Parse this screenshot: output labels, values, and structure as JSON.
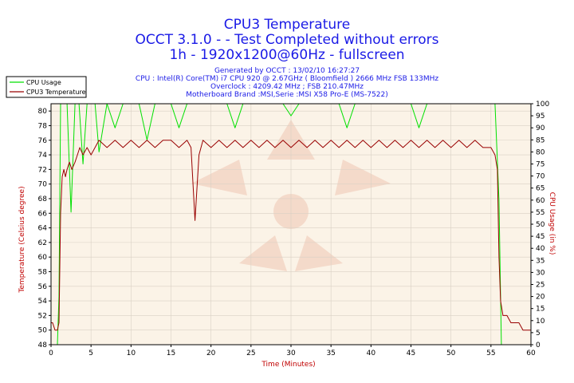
{
  "header": {
    "line1": "CPU3 Temperature",
    "line2": "OCCT 3.1.0 -  - Test Completed without errors",
    "line3": "1h - 1920x1200@60Hz - fullscreen"
  },
  "info": {
    "line1": "Generated by OCCT : 13/02/10 16:27:27",
    "line2": "CPU : Intel(R) Core(TM) i7 CPU 920 @ 2.67GHz ( Bloomfield ) 2666 MHz FSB 133MHz",
    "line3": "Overclock : 4209.42 MHz ; FSB 210.47MHz",
    "line4": "Motherboard Brand :MSI,Serie :MSI X58 Pro-E (MS-7522)"
  },
  "colors": {
    "title": "#1a1ae6",
    "cpu_usage": "#00e000",
    "temperature": "#990000",
    "plot_bg": "#fbf3e7",
    "watermark": "#f0c6b4",
    "grid": "#d9d0c4"
  },
  "chart_data": {
    "type": "line",
    "title": "CPU3 Temperature",
    "xlabel": "Time (Minutes)",
    "ylabel_left": "Temperature (Celsius degree)",
    "ylabel_right": "CPU Usage (in %)",
    "xlim": [
      0,
      60
    ],
    "ylim_left": [
      48,
      81
    ],
    "ylim_right": [
      0,
      100
    ],
    "x_ticks": [
      0,
      5,
      10,
      15,
      20,
      25,
      30,
      35,
      40,
      45,
      50,
      55,
      60
    ],
    "y_left_ticks": [
      48,
      50,
      52,
      54,
      56,
      58,
      60,
      62,
      64,
      66,
      68,
      70,
      72,
      74,
      76,
      78,
      80
    ],
    "y_right_ticks": [
      0,
      5,
      10,
      15,
      20,
      25,
      30,
      35,
      40,
      45,
      50,
      55,
      60,
      65,
      70,
      75,
      80,
      85,
      90,
      95,
      100
    ],
    "legend": [
      "CPU Usage",
      "CPU3 Temperature"
    ],
    "legend_position": "top-left",
    "series": [
      {
        "name": "CPU3 Temperature",
        "axis": "left",
        "x": [
          0,
          0.2,
          0.5,
          0.8,
          1.0,
          1.2,
          1.4,
          1.6,
          1.8,
          2.0,
          2.3,
          2.6,
          3.0,
          3.3,
          3.6,
          4.0,
          4.5,
          5.0,
          5.5,
          6.0,
          7.0,
          8.0,
          9.0,
          10.0,
          11.0,
          12.0,
          13.0,
          14.0,
          15.0,
          16.0,
          17.0,
          17.5,
          18.0,
          18.5,
          19.0,
          20.0,
          21.0,
          22.0,
          23.0,
          24.0,
          25.0,
          26.0,
          27.0,
          28.0,
          29.0,
          30.0,
          31.0,
          32.0,
          33.0,
          34.0,
          35.0,
          36.0,
          37.0,
          38.0,
          39.0,
          40.0,
          41.0,
          42.0,
          43.0,
          44.0,
          45.0,
          46.0,
          47.0,
          48.0,
          49.0,
          50.0,
          51.0,
          52.0,
          53.0,
          54.0,
          55.0,
          55.5,
          55.8,
          56.0,
          56.2,
          56.5,
          57.0,
          57.5,
          58.0,
          58.5,
          59.0,
          59.5,
          60.0
        ],
        "values": [
          51,
          51,
          50,
          50,
          51,
          66,
          71,
          72,
          71,
          72,
          73,
          72,
          73,
          74,
          75,
          74,
          75,
          74,
          75,
          76,
          75,
          76,
          75,
          76,
          75,
          76,
          75,
          76,
          76,
          75,
          76,
          75,
          65,
          74,
          76,
          75,
          76,
          75,
          76,
          75,
          76,
          75,
          76,
          75,
          76,
          75,
          76,
          75,
          76,
          75,
          76,
          75,
          76,
          75,
          76,
          75,
          76,
          75,
          76,
          75,
          76,
          75,
          76,
          75,
          76,
          75,
          76,
          75,
          76,
          75,
          75,
          74,
          72,
          60,
          54,
          52,
          52,
          51,
          51,
          51,
          50,
          50,
          50
        ]
      },
      {
        "name": "CPU Usage",
        "axis": "right",
        "x": [
          0,
          0.8,
          1.0,
          1.2,
          1.5,
          2.0,
          2.5,
          3.0,
          3.5,
          4.0,
          4.5,
          5.0,
          5.5,
          6.0,
          7.0,
          8.0,
          9.0,
          10.0,
          11.0,
          12.0,
          13.0,
          14.0,
          15.0,
          16.0,
          17.0,
          18.0,
          19.0,
          20.0,
          21.0,
          22.0,
          23.0,
          24.0,
          25.0,
          26.0,
          27.0,
          28.0,
          29.0,
          30.0,
          31.0,
          32.0,
          33.0,
          34.0,
          35.0,
          36.0,
          37.0,
          38.0,
          39.0,
          40.0,
          41.0,
          42.0,
          43.0,
          44.0,
          45.0,
          46.0,
          47.0,
          48.0,
          49.0,
          50.0,
          51.0,
          52.0,
          53.0,
          54.0,
          55.0,
          55.5,
          56.0,
          56.3,
          57.0,
          58.0,
          59.0,
          60.0
        ],
        "values": [
          0,
          0,
          20,
          100,
          100,
          100,
          55,
          100,
          100,
          75,
          100,
          100,
          100,
          80,
          100,
          90,
          100,
          100,
          100,
          85,
          100,
          100,
          100,
          90,
          100,
          100,
          100,
          100,
          100,
          100,
          90,
          100,
          100,
          100,
          100,
          100,
          100,
          95,
          100,
          100,
          100,
          100,
          100,
          100,
          90,
          100,
          100,
          100,
          100,
          100,
          100,
          100,
          100,
          90,
          100,
          100,
          100,
          100,
          100,
          100,
          100,
          100,
          100,
          100,
          60,
          0,
          0,
          0,
          0,
          0
        ]
      }
    ]
  }
}
